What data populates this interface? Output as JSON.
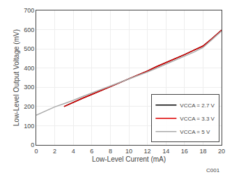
{
  "chart_data": {
    "type": "line",
    "xlabel": "Low-Level Current (mA)",
    "ylabel": "Low-Level Output Voltage (mV)",
    "xlim": [
      0,
      20
    ],
    "ylim": [
      0,
      700
    ],
    "xticks": [
      0,
      2,
      4,
      6,
      8,
      10,
      12,
      14,
      16,
      18,
      20
    ],
    "yticks": [
      0,
      100,
      200,
      300,
      400,
      500,
      600,
      700
    ],
    "grid": true,
    "legend": "lower right",
    "annotation": "C001",
    "series": [
      {
        "name": "VCCA = 2.7 V",
        "color": "#000000",
        "line_style": "solid",
        "x": [
          3.0,
          4,
          5,
          6,
          7,
          8,
          9,
          10,
          11,
          12,
          13,
          14,
          15,
          16,
          17,
          18,
          19,
          20
        ],
        "values": [
          200,
          222,
          243,
          263,
          283,
          303,
          323,
          343,
          363,
          385,
          408,
          428,
          450,
          470,
          493,
          515,
          555,
          597
        ]
      },
      {
        "name": "VCCA = 3.3 V",
        "color": "#dd0000",
        "line_style": "solid",
        "x": [
          3.0,
          4,
          5,
          6,
          7,
          8,
          9,
          10,
          11,
          12,
          13,
          14,
          15,
          16,
          17,
          18,
          19,
          20
        ],
        "values": [
          200,
          222,
          243,
          263,
          283,
          303,
          323,
          343,
          363,
          385,
          408,
          428,
          450,
          470,
          493,
          515,
          555,
          597
        ]
      },
      {
        "name": "VCCA = 5 V",
        "color": "#aaaaaa",
        "line_style": "solid",
        "x": [
          0,
          1,
          2,
          3,
          4,
          5,
          6,
          7,
          8,
          9,
          10,
          11,
          12,
          13,
          14,
          15,
          16,
          17,
          18,
          19,
          20
        ],
        "values": [
          155,
          177,
          198,
          215,
          232,
          252,
          270,
          288,
          307,
          325,
          343,
          362,
          380,
          400,
          420,
          440,
          462,
          483,
          507,
          550,
          593
        ]
      }
    ]
  }
}
